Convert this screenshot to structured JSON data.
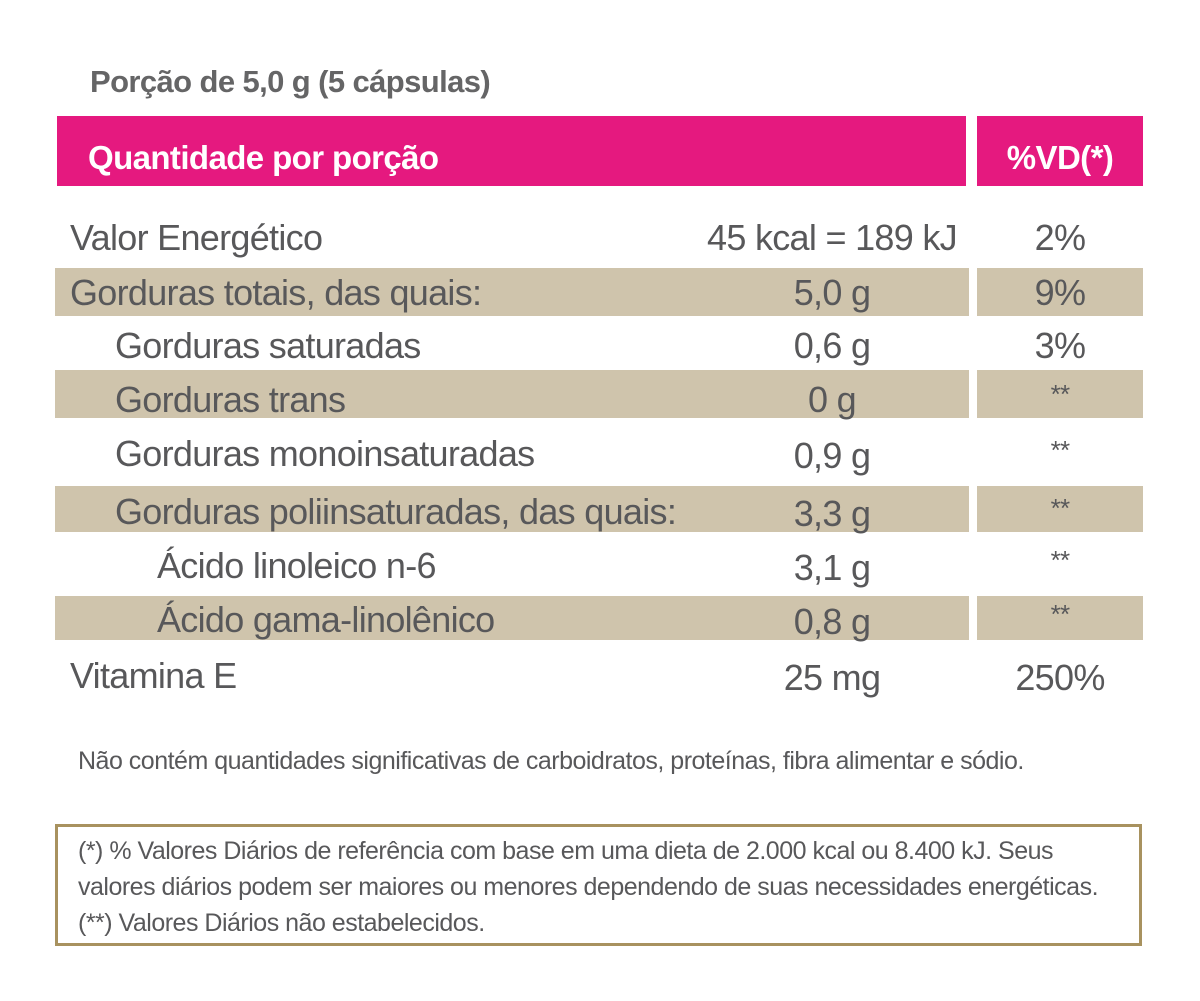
{
  "serving": "Porção de 5,0 g (5 cápsulas)",
  "header": {
    "quantity": "Quantidade por porção",
    "dv": "%VD(*)"
  },
  "colors": {
    "header_bg": "#e5197f",
    "row_shade": "#cfc4ac",
    "box_border": "#a8925f",
    "text": "#58585a"
  },
  "rows": [
    {
      "label": "Valor Energético",
      "amount": "45 kcal = 189 kJ",
      "dv": "2%"
    },
    {
      "label": "Gorduras totais, das quais:",
      "amount": "5,0 g",
      "dv": "9%"
    },
    {
      "label": "Gorduras saturadas",
      "amount": "0,6 g",
      "dv": "3%"
    },
    {
      "label": "Gorduras trans",
      "amount": "0 g",
      "dv": "**"
    },
    {
      "label": "Gorduras monoinsaturadas",
      "amount": "0,9 g",
      "dv": "**"
    },
    {
      "label": "Gorduras poliinsaturadas, das quais:",
      "amount": "3,3 g",
      "dv": "**"
    },
    {
      "label": "Ácido linoleico n-6",
      "amount": "3,1 g",
      "dv": "**"
    },
    {
      "label": "Ácido gama-linolênico",
      "amount": "0,8 g",
      "dv": "**"
    },
    {
      "label": "Vitamina E",
      "amount": "25 mg",
      "dv": "250%"
    }
  ],
  "note": "Não contém quantidades significativas de carboidratos, proteínas, fibra alimentar e sódio.",
  "footnote": "(*) % Valores Diários de referência com base em uma dieta de 2.000 kcal ou 8.400 kJ. Seus valores diários podem ser maiores ou menores dependendo de suas necessidades energéticas. (**) Valores Diários não estabelecidos."
}
